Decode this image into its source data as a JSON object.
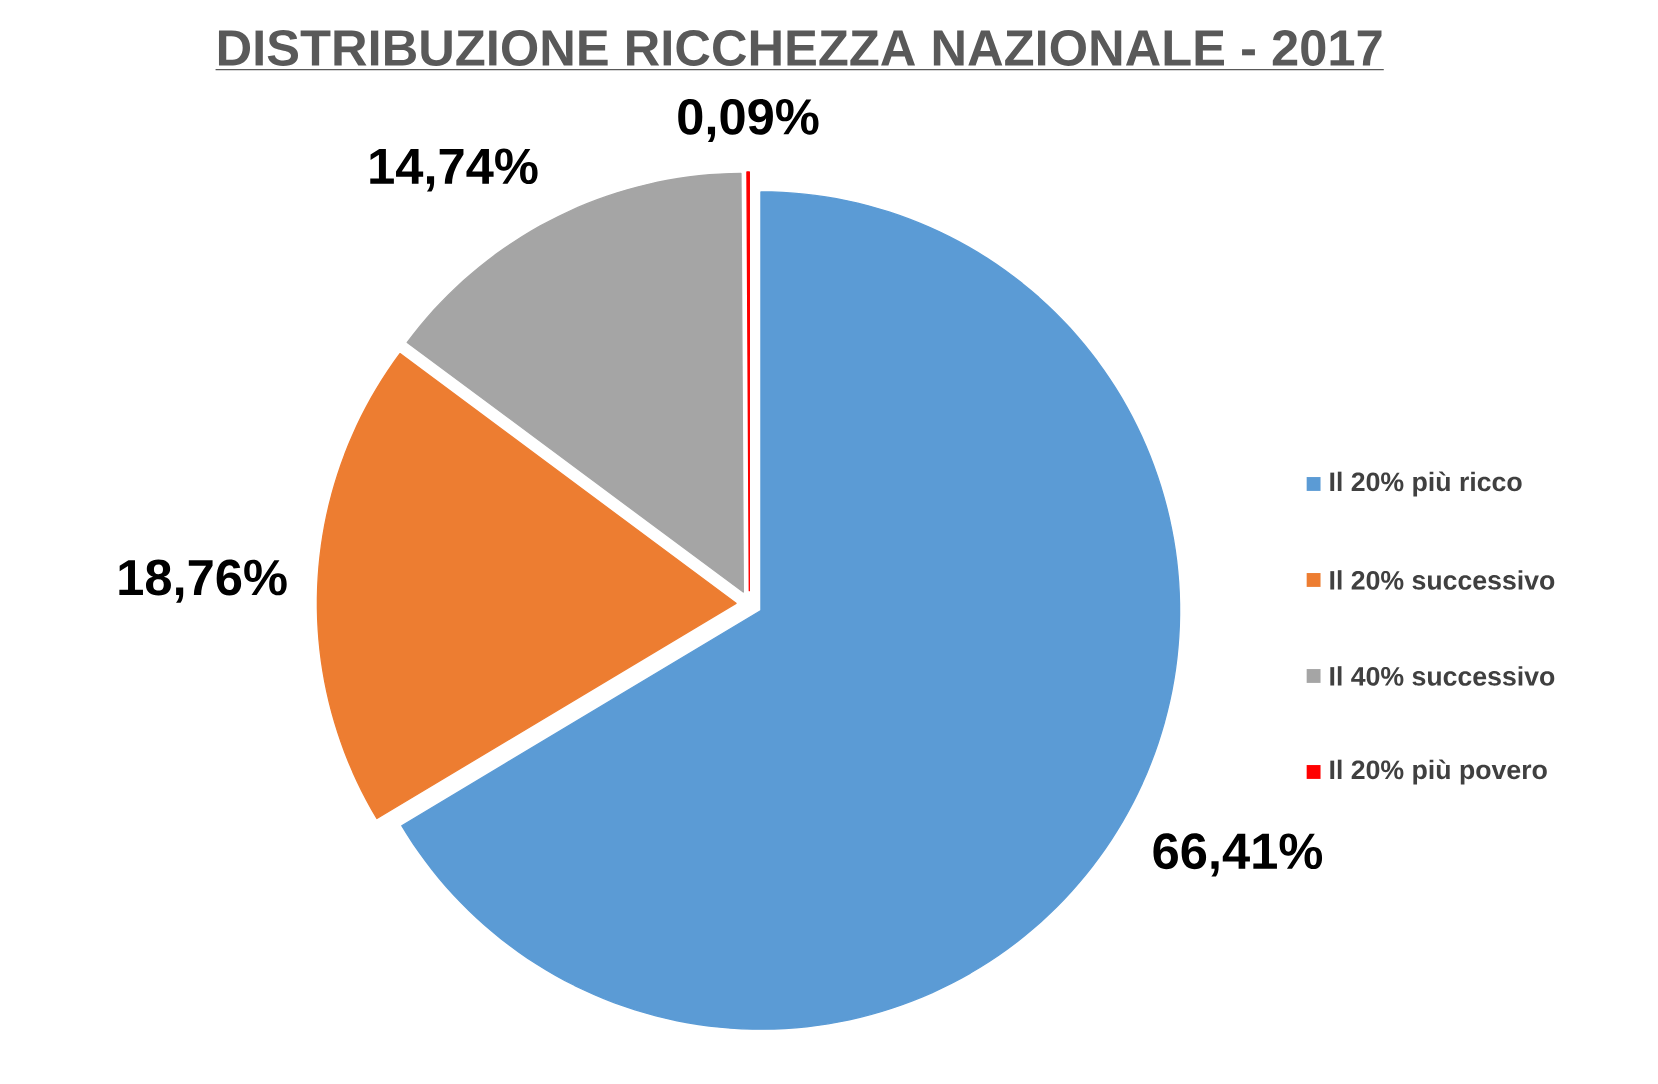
{
  "chart_data": {
    "type": "pie",
    "title": "DISTRIBUZIONE RICCHEZZA NAZIONALE - 2017",
    "categories": [
      "Il 20% più ricco",
      "Il 20% successivo",
      "Il 40% successivo",
      "Il 20% più povero"
    ],
    "values": [
      66.41,
      18.76,
      14.74,
      0.09
    ],
    "value_labels": [
      "66,41%",
      "18,76%",
      "14,74%",
      "0,09%"
    ],
    "colors": [
      "#5b9bd5",
      "#ed7d31",
      "#a5a5a5",
      "#ff0000"
    ],
    "legend": "right"
  }
}
